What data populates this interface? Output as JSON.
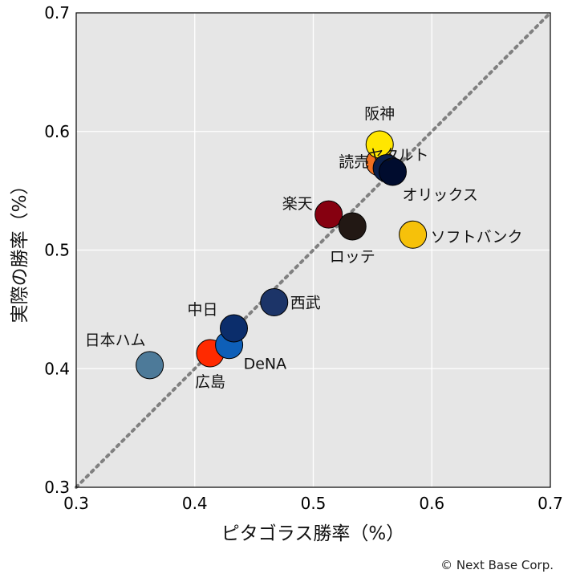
{
  "chart_data": {
    "type": "scatter",
    "xlabel": "ピタゴラス勝率（%）",
    "ylabel": "実際の勝率（%）",
    "xlim": [
      0.3,
      0.7
    ],
    "ylim": [
      0.3,
      0.7
    ],
    "xticks": [
      "0.3",
      "0.4",
      "0.5",
      "0.6",
      "0.7"
    ],
    "yticks": [
      "0.3",
      "0.4",
      "0.5",
      "0.6",
      "0.7"
    ],
    "grid": true,
    "reference_line": "y = x (dotted)",
    "points": [
      {
        "name": "日本ハム",
        "x": 0.362,
        "y": 0.403,
        "color": "#4d7a99"
      },
      {
        "name": "広島",
        "x": 0.413,
        "y": 0.413,
        "color": "#ff2a00"
      },
      {
        "name": "DeNA",
        "x": 0.429,
        "y": 0.42,
        "color": "#0e5fb8"
      },
      {
        "name": "中日",
        "x": 0.433,
        "y": 0.434,
        "color": "#0b2d6b"
      },
      {
        "name": "西武",
        "x": 0.467,
        "y": 0.456,
        "color": "#1c3468"
      },
      {
        "name": "楽天",
        "x": 0.513,
        "y": 0.53,
        "color": "#860010"
      },
      {
        "name": "ロッテ",
        "x": 0.533,
        "y": 0.52,
        "color": "#221814"
      },
      {
        "name": "読売",
        "x": 0.556,
        "y": 0.574,
        "color": "#f07020"
      },
      {
        "name": "阪神",
        "x": 0.556,
        "y": 0.589,
        "color": "#ffe600"
      },
      {
        "name": "ヤクルト",
        "x": 0.562,
        "y": 0.569,
        "color": "#0a1f4a"
      },
      {
        "name": "オリックス",
        "x": 0.567,
        "y": 0.566,
        "color": "#000c2e"
      },
      {
        "name": "ソフトバンク",
        "x": 0.584,
        "y": 0.513,
        "color": "#f6c10a"
      }
    ]
  },
  "credit": "© Next Base Corp."
}
